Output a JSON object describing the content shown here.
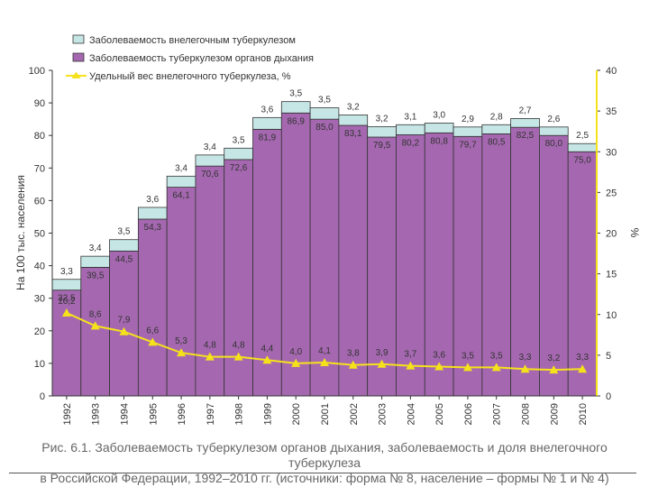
{
  "legend": {
    "extra_label": "Заболеваемость внелегочным туберкулезом",
    "resp_label": "Заболеваемость туберкулезом органов дыхания",
    "share_label": "Удельный вес внелегочного туберкулеза, %"
  },
  "colors": {
    "extra": "#c6e6e6",
    "resp": "#a568b0",
    "line": "#f5e21a",
    "axis": "#333333"
  },
  "chart_data": {
    "type": "bar",
    "stacked": true,
    "categories": [
      "1992",
      "1993",
      "1994",
      "1995",
      "1996",
      "1997",
      "1998",
      "1999",
      "2000",
      "2001",
      "2002",
      "2003",
      "2004",
      "2005",
      "2006",
      "2007",
      "2008",
      "2009",
      "2010"
    ],
    "series": [
      {
        "name": "Заболеваемость туберкулезом органов дыхания",
        "values": [
          32.5,
          39.5,
          44.5,
          54.3,
          64.1,
          70.6,
          72.6,
          81.9,
          86.9,
          85.0,
          83.1,
          79.5,
          80.2,
          80.8,
          79.7,
          80.5,
          82.5,
          80.0,
          75.0
        ]
      },
      {
        "name": "Заболеваемость внелегочным туберкулезом",
        "values": [
          3.3,
          3.4,
          3.5,
          3.6,
          3.4,
          3.4,
          3.5,
          3.6,
          3.5,
          3.5,
          3.2,
          3.2,
          3.1,
          3.0,
          2.9,
          2.8,
          2.7,
          2.6,
          2.5
        ]
      },
      {
        "name": "Удельный вес внелегочного туберкулеза, %",
        "axis": "right",
        "type": "line",
        "values": [
          10.2,
          8.6,
          7.9,
          6.6,
          5.3,
          4.8,
          4.8,
          4.4,
          4.0,
          4.1,
          3.8,
          3.9,
          3.7,
          3.6,
          3.5,
          3.5,
          3.3,
          3.2,
          3.3
        ]
      }
    ],
    "resp_labels": [
      "32,5",
      "39,5",
      "44,5",
      "54,3",
      "64,1",
      "70,6",
      "72,6",
      "81,9",
      "86,9",
      "85,0",
      "83,1",
      "79,5",
      "80,2",
      "80,8",
      "79,7",
      "80,5",
      "82,5",
      "80,0",
      "75,0"
    ],
    "extra_labels": [
      "3,3",
      "3,4",
      "3,5",
      "3,6",
      "3,4",
      "3,4",
      "3,5",
      "3,6",
      "3,5",
      "3,5",
      "3,2",
      "3,2",
      "3,1",
      "3,0",
      "2,9",
      "2,8",
      "2,7",
      "2,6",
      "2,5"
    ],
    "share_labels": [
      "10,2",
      "8,6",
      "7,9",
      "6,6",
      "5,3",
      "4,8",
      "4,8",
      "4,4",
      "4,0",
      "4,1",
      "3,8",
      "3,9",
      "3,7",
      "3,6",
      "3,5",
      "3,5",
      "3,3",
      "3,2",
      "3,3"
    ],
    "ylabel": "На 100 тыс. населения",
    "y2label": "%",
    "ylim": [
      0,
      100
    ],
    "y2lim": [
      0,
      40
    ],
    "yticks": [
      "0",
      "10",
      "20",
      "30",
      "40",
      "50",
      "60",
      "70",
      "80",
      "90",
      "100"
    ],
    "y2ticks": [
      "0",
      "5",
      "10",
      "15",
      "20",
      "25",
      "30",
      "35",
      "40"
    ]
  },
  "caption": {
    "line1": "Рис. 6.1. Заболеваемость туберкулезом органов дыхания, заболеваемость и доля внелегочного туберкулеза",
    "line2": "в Российской Федерации, 1992–2010 гг. (источники: форма № 8, население – формы № 1 и № 4)"
  }
}
